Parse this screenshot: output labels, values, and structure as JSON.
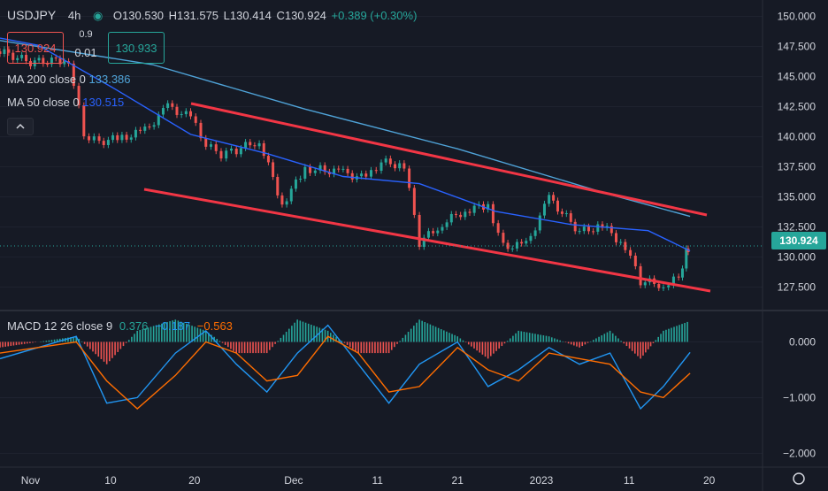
{
  "header": {
    "symbol": "USDJPY",
    "interval": "4h",
    "open": "O130.530",
    "high": "H131.575",
    "low": "L130.414",
    "close": "C130.924",
    "change": "+0.389 (+0.30%)"
  },
  "order": {
    "sell_price": "130.924",
    "spread": "0.9",
    "qty": "0.01",
    "buy_price": "130.933"
  },
  "indicators": {
    "ma200_label": "MA 200 close 0",
    "ma200_value": "133.386",
    "ma50_label": "MA 50 close 0",
    "ma50_value": "130.515",
    "macd_label": "MACD 12 26 close 9",
    "macd_hist": "0.376",
    "macd_line": "−0.187",
    "macd_signal": "−0.563"
  },
  "last_price": "130.924",
  "colors": {
    "background": "#161a25",
    "up": "#26a69a",
    "down": "#ef5350",
    "ma200": "#4fa3d8",
    "ma50": "#2962ff",
    "trendline": "#f23645",
    "macd_line": "#2196f3",
    "signal_line": "#ff6d00"
  },
  "chart_data": {
    "type": "line",
    "price_axis_ticks": [
      "150.000",
      "147.500",
      "145.000",
      "142.500",
      "140.000",
      "137.500",
      "135.000",
      "132.500",
      "130.000",
      "127.500"
    ],
    "macd_axis_ticks": [
      "0.000",
      "−1.000",
      "−2.000"
    ],
    "time_labels": [
      "Nov",
      "10",
      "20",
      "Dec",
      "11",
      "21",
      "2023",
      "11",
      "20"
    ],
    "price_ylim": [
      126.0,
      151.0
    ],
    "macd_ylim": [
      -2.2,
      0.5
    ],
    "series": [
      {
        "name": "price",
        "x": [
          0,
          0.04,
          0.09,
          0.11,
          0.13,
          0.16,
          0.19,
          0.22,
          0.25,
          0.27,
          0.29,
          0.31,
          0.34,
          0.37,
          0.4,
          0.42,
          0.45,
          0.48,
          0.5,
          0.53,
          0.55,
          0.58,
          0.61,
          0.64,
          0.66,
          0.69,
          0.72,
          0.76,
          0.79,
          0.82,
          0.84,
          0.87,
          0.89,
          0.9,
          0.905
        ],
        "y": [
          147.1,
          146.2,
          146.4,
          140.2,
          139.6,
          139.9,
          140.5,
          142.5,
          141.6,
          139.3,
          138.5,
          138.9,
          139.7,
          134.4,
          137.3,
          137.3,
          137.0,
          136.5,
          137.9,
          137.6,
          131.2,
          132.8,
          133.9,
          134.3,
          130.9,
          131.0,
          134.9,
          132.1,
          132.6,
          130.9,
          128.0,
          127.7,
          128.3,
          130.5,
          130.924
        ]
      },
      {
        "name": "MA 200",
        "x": [
          0,
          0.2,
          0.4,
          0.6,
          0.8,
          0.905
        ],
        "y": [
          148.0,
          146.0,
          142.3,
          139.0,
          135.2,
          133.386
        ]
      },
      {
        "name": "MA 50",
        "x": [
          0,
          0.05,
          0.15,
          0.25,
          0.35,
          0.45,
          0.55,
          0.65,
          0.75,
          0.85,
          0.905
        ],
        "y": [
          148.2,
          147.6,
          144.0,
          140.2,
          138.6,
          136.7,
          136.1,
          133.8,
          132.7,
          132.2,
          130.515
        ]
      }
    ],
    "macd": {
      "x": [
        0,
        0.05,
        0.1,
        0.14,
        0.18,
        0.23,
        0.27,
        0.31,
        0.35,
        0.39,
        0.43,
        0.47,
        0.51,
        0.55,
        0.6,
        0.64,
        0.68,
        0.72,
        0.76,
        0.8,
        0.84,
        0.87,
        0.905
      ],
      "macd_line": [
        -0.3,
        -0.1,
        0.1,
        -1.1,
        -1.0,
        -0.2,
        0.2,
        -0.4,
        -0.9,
        -0.2,
        0.3,
        -0.4,
        -1.1,
        -0.4,
        0.0,
        -0.8,
        -0.5,
        -0.1,
        -0.4,
        -0.2,
        -1.2,
        -0.8,
        -0.187
      ],
      "signal_line": [
        -0.2,
        -0.1,
        0.0,
        -0.7,
        -1.2,
        -0.6,
        0.0,
        -0.2,
        -0.7,
        -0.6,
        0.1,
        -0.2,
        -0.9,
        -0.8,
        -0.1,
        -0.5,
        -0.7,
        -0.2,
        -0.3,
        -0.4,
        -0.9,
        -1.0,
        -0.563
      ],
      "histogram": [
        -0.1,
        0.0,
        0.1,
        -0.4,
        0.2,
        0.4,
        0.2,
        -0.2,
        -0.2,
        0.4,
        0.2,
        -0.2,
        -0.2,
        0.4,
        0.1,
        -0.3,
        0.2,
        0.1,
        -0.1,
        0.2,
        -0.3,
        0.2,
        0.376
      ]
    }
  }
}
